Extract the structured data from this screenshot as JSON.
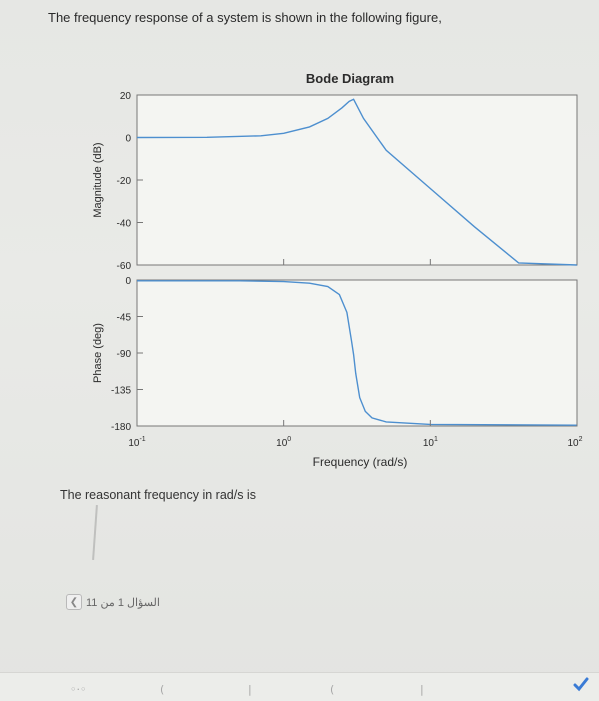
{
  "question": "The frequency response of a system is shown in the following figure,",
  "answer_prompt": "The reasonant frequency in rad/s is",
  "pager": {
    "text": "السؤال 1 من 11"
  },
  "colors": {
    "line": "#4d8fcf",
    "axis": "#777777",
    "text": "#2b2b2b",
    "plot_bg": "#f4f5f2"
  },
  "chart_data": {
    "type": "line",
    "title": "Bode Diagram",
    "xlabel": "Frequency (rad/s)",
    "x_scale": "log",
    "xlim": [
      0.1,
      100
    ],
    "x_ticks": [
      {
        "value": 0.1,
        "base": "10",
        "exp": "-1"
      },
      {
        "value": 1,
        "base": "10",
        "exp": "0"
      },
      {
        "value": 10,
        "base": "10",
        "exp": "1"
      },
      {
        "value": 100,
        "base": "10",
        "exp": "2"
      }
    ],
    "grid": false,
    "panels": [
      {
        "name": "magnitude",
        "ylabel": "Magnitude (dB)",
        "ylim": [
          -60,
          20
        ],
        "y_ticks": [
          20,
          0,
          -20,
          -40,
          -60
        ],
        "x": [
          0.1,
          0.3,
          0.7,
          1.0,
          1.5,
          2.0,
          2.5,
          2.8,
          3.0,
          3.5,
          5.0,
          10.0,
          20.0,
          40.0,
          100.0
        ],
        "y": [
          0,
          0.1,
          0.8,
          2,
          5,
          9,
          14,
          17,
          18,
          9,
          -6,
          -24,
          -42,
          -59,
          -60
        ]
      },
      {
        "name": "phase",
        "ylabel": "Phase (deg)",
        "ylim": [
          -180,
          0
        ],
        "y_ticks": [
          0,
          -45,
          -90,
          -135,
          -180
        ],
        "x": [
          0.1,
          0.5,
          1.0,
          1.5,
          2.0,
          2.4,
          2.7,
          2.9,
          3.0,
          3.1,
          3.3,
          3.6,
          4.0,
          5.0,
          10.0,
          100.0
        ],
        "y": [
          -1,
          -1,
          -2,
          -4,
          -8,
          -18,
          -40,
          -75,
          -92,
          -115,
          -145,
          -162,
          -170,
          -175,
          -178,
          -179
        ]
      }
    ]
  }
}
